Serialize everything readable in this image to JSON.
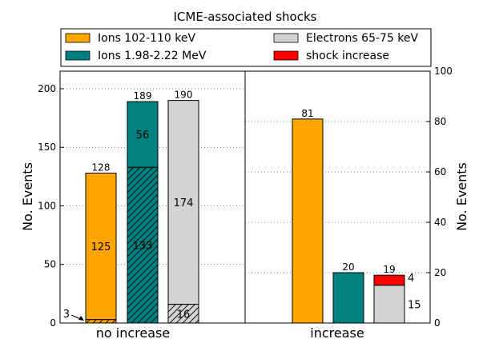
{
  "chart_data": {
    "type": "bar",
    "title": "ICME-associated shocks",
    "legend": {
      "placement": "top",
      "entries": [
        {
          "label": "Ions 102-110 keV",
          "color": "#ffa500"
        },
        {
          "label": "Electrons 65-75 keV",
          "color": "#d3d3d3"
        },
        {
          "label": "Ions 1.98-2.22 MeV",
          "color": "#008080"
        },
        {
          "label": "shock increase",
          "color": "#ff0000"
        }
      ]
    },
    "panels": [
      {
        "xlabel": "no increase",
        "ylabel": "No. Events",
        "y_axis_side": "left",
        "ylim": [
          0,
          215
        ],
        "yticks": [
          "0",
          "50",
          "100",
          "150",
          "200"
        ],
        "grid": true,
        "bars": [
          {
            "series": "Ions 102-110 keV",
            "color": "#ffa500",
            "total": 128,
            "total_label": "128",
            "segments": [
              {
                "value": 3,
                "label": "3",
                "hatch": true,
                "annotation": "arrow"
              },
              {
                "value": 125,
                "label": "125"
              }
            ]
          },
          {
            "series": "Ions 1.98-2.22 MeV",
            "color": "#008080",
            "total": 189,
            "total_label": "189",
            "segments": [
              {
                "value": 133,
                "label": "133",
                "hatch": true
              },
              {
                "value": 56,
                "label": "56"
              }
            ]
          },
          {
            "series": "Electrons 65-75 keV",
            "color": "#d3d3d3",
            "total": 190,
            "total_label": "190",
            "segments": [
              {
                "value": 16,
                "label": "16",
                "hatch": true
              },
              {
                "value": 174,
                "label": "174"
              }
            ]
          }
        ]
      },
      {
        "xlabel": "increase",
        "ylabel": "No. Events",
        "y_axis_side": "right",
        "ylim": [
          0,
          100
        ],
        "yticks": [
          "0",
          "20",
          "40",
          "60",
          "80",
          "100"
        ],
        "grid": true,
        "bars": [
          {
            "series": "Ions 102-110 keV",
            "color": "#ffa500",
            "total": 81,
            "total_label": "81",
            "segments": [
              {
                "value": 81,
                "label": ""
              }
            ]
          },
          {
            "series": "Ions 1.98-2.22 MeV",
            "color": "#008080",
            "total": 20,
            "total_label": "20",
            "segments": [
              {
                "value": 20,
                "label": ""
              }
            ]
          },
          {
            "series": "Electrons 65-75 keV",
            "color": "#d3d3d3",
            "total": 19,
            "total_label": "19",
            "segments": [
              {
                "value": 15,
                "label": "15"
              },
              {
                "value": 4,
                "label": "4",
                "color": "#ff0000"
              }
            ]
          }
        ]
      }
    ]
  }
}
